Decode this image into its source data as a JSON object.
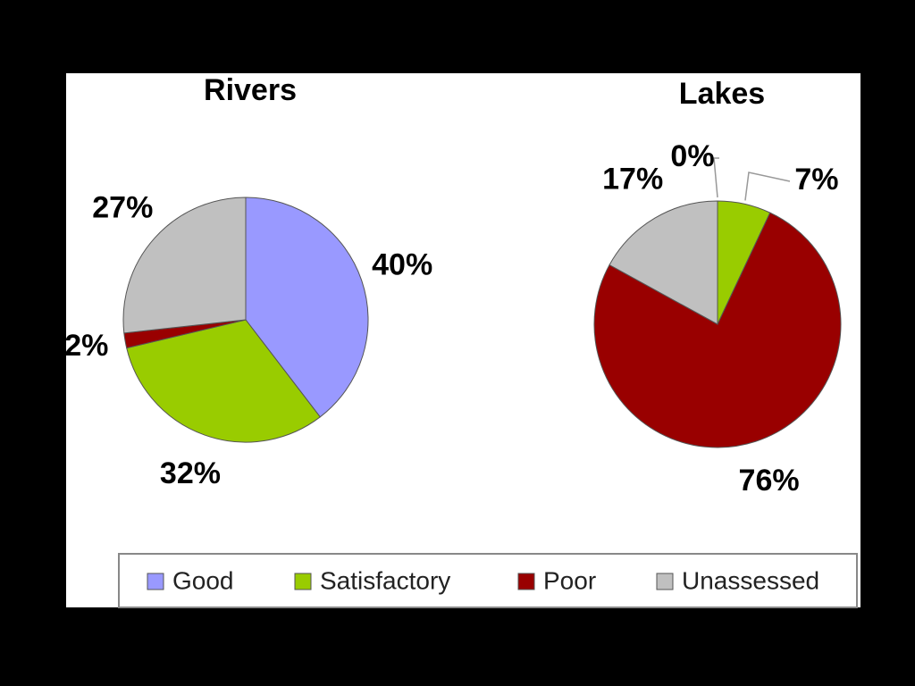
{
  "chart_data": [
    {
      "type": "pie",
      "title": "Rivers",
      "categories": [
        "Good",
        "Satisfactory",
        "Poor",
        "Unassessed"
      ],
      "values": [
        40,
        32,
        2,
        27
      ],
      "value_labels": [
        "40%",
        "32%",
        "2%",
        "27%"
      ],
      "colors": [
        "#9999ff",
        "#99cc00",
        "#990000",
        "#c0c0c0"
      ]
    },
    {
      "type": "pie",
      "title": "Lakes",
      "categories": [
        "Good",
        "Satisfactory",
        "Poor",
        "Unassessed"
      ],
      "values": [
        0,
        7,
        76,
        17
      ],
      "value_labels": [
        "0%",
        "7%",
        "76%",
        "17%"
      ],
      "colors": [
        "#9999ff",
        "#99cc00",
        "#990000",
        "#c0c0c0"
      ]
    }
  ]
}
